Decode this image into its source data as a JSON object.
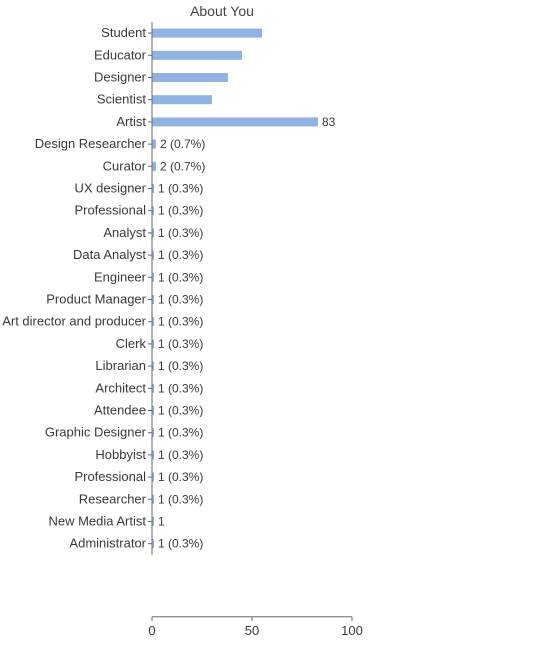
{
  "colors": {
    "bar": "#8fb4e3",
    "text": "#3a3a3a",
    "axis": "#6a6a6a"
  },
  "chart_data": {
    "type": "bar",
    "orientation": "horizontal",
    "title": "About You",
    "xlabel": "",
    "ylabel": "",
    "xlim": [
      0,
      100
    ],
    "xticks": [
      0,
      50,
      100
    ],
    "grid": false,
    "legend": "none",
    "categories": [
      "Student",
      "Educator",
      "Designer",
      "Scientist",
      "Artist",
      "Design Researcher",
      "Curator",
      "UX designer",
      "Professional",
      "Analyst",
      "Data Analyst",
      "Engineer",
      "Product Manager",
      "Art director and producer",
      "Clerk",
      "Librarian",
      "Architect",
      "Attendee",
      "Graphic Designer",
      "Hobbyist",
      "Professional",
      "Researcher",
      "New Media Artist",
      "Administrator"
    ],
    "values": [
      55,
      45,
      38,
      30,
      83,
      2,
      2,
      1,
      1,
      1,
      1,
      1,
      1,
      1,
      1,
      1,
      1,
      1,
      1,
      1,
      1,
      1,
      1,
      1
    ],
    "data_labels": [
      "",
      "",
      "",
      "",
      "83",
      "2 (0.7%)",
      "2 (0.7%)",
      "1 (0.3%)",
      "1 (0.3%)",
      "1 (0.3%)",
      "1 (0.3%)",
      "1 (0.3%)",
      "1 (0.3%)",
      "1 (0.3%)",
      "1 (0.3%)",
      "1 (0.3%)",
      "1 (0.3%)",
      "1 (0.3%)",
      "1 (0.3%)",
      "1 (0.3%)",
      "1 (0.3%)",
      "1 (0.3%)",
      "1",
      "1 (0.3%)"
    ]
  }
}
